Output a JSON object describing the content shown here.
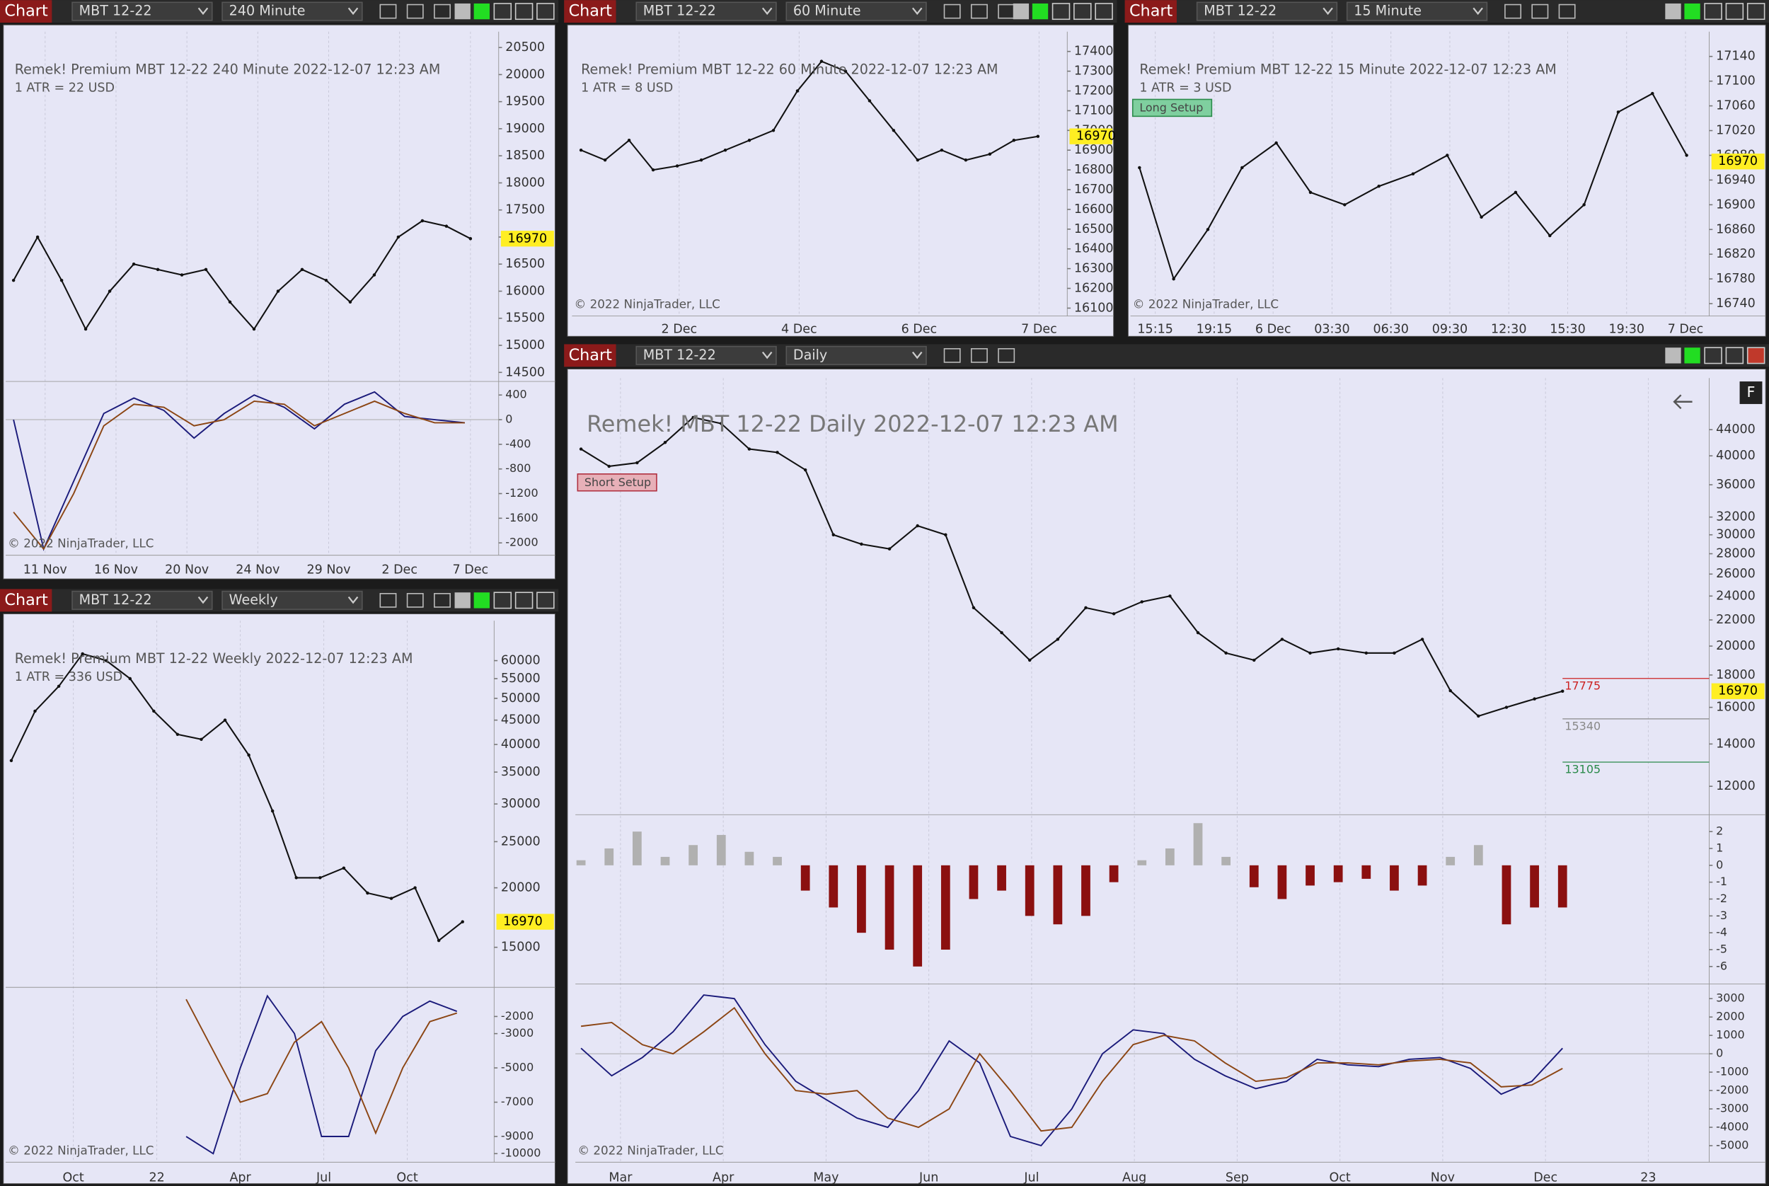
{
  "charts": [
    {
      "tab": "Chart",
      "instrument": "MBT 12-22",
      "interval": "240 Minute",
      "header": "Remek!  Premium  MBT 12-22  240 Minute  2022-12-07 12:23 AM",
      "atr": "1 ATR = 22 USD",
      "copyright": "© 2022 NinjaTrader, LLC",
      "price_label": 16970,
      "xticks": [
        "11 Nov",
        "16 Nov",
        "20 Nov",
        "24 Nov",
        "29 Nov",
        "2 Dec",
        "7 Dec"
      ],
      "price": {
        "ylim": [
          14333,
          20792
        ],
        "log_scale": false,
        "yticks": [
          14500,
          15000,
          15500,
          16000,
          16500,
          17000,
          17500,
          18000,
          18500,
          19000,
          19500,
          20000,
          20500
        ],
        "color": "#111111",
        "values": [
          16200,
          17000,
          16200,
          15300,
          16000,
          16500,
          16400,
          16300,
          16400,
          15800,
          15300,
          16000,
          16400,
          16200,
          15800,
          16300,
          17000,
          17300,
          17200,
          16970
        ]
      },
      "indicator": {
        "ylim": [
          -2200,
          620
        ],
        "yticks": [
          -2000,
          -1600,
          -1200,
          -800,
          -400,
          0,
          400
        ],
        "series": [
          {
            "color": "#1a1a7a",
            "values": [
              0,
              -2100,
              -1000,
              100,
              350,
              150,
              -300,
              100,
              400,
              200,
              -150,
              250,
              450,
              50,
              0,
              -50
            ]
          },
          {
            "color": "#8b4513",
            "values": [
              -1500,
              -2100,
              -1200,
              -100,
              250,
              200,
              -100,
              0,
              300,
              250,
              -100,
              100,
              300,
              100,
              -50,
              -50
            ]
          }
        ]
      }
    },
    {
      "tab": "Chart",
      "instrument": "MBT 12-22",
      "interval": "60 Minute",
      "header": "Remek!  Premium  MBT 12-22  60 Minute  2022-12-07 12:23 AM",
      "atr": "1 ATR = 8 USD",
      "copyright": "© 2022 NinjaTrader, LLC",
      "price_label": 16970,
      "xticks": [
        "2 Dec",
        "4 Dec",
        "6 Dec",
        "7 Dec"
      ],
      "price": {
        "ylim": [
          16060,
          17500
        ],
        "log_scale": false,
        "yticks": [
          16100,
          16200,
          16300,
          16400,
          16500,
          16600,
          16700,
          16800,
          16900,
          17000,
          17100,
          17200,
          17300,
          17400
        ],
        "color": "#111111",
        "values": [
          16900,
          16850,
          16950,
          16800,
          16820,
          16850,
          16900,
          16950,
          17000,
          17200,
          17350,
          17300,
          17150,
          17000,
          16850,
          16900,
          16850,
          16880,
          16950,
          16970
        ]
      }
    },
    {
      "tab": "Chart",
      "instrument": "MBT 12-22",
      "interval": "15 Minute",
      "header": "Remek!  Premium  MBT 12-22  15 Minute  2022-12-07 12:23 AM",
      "atr": "1 ATR = 3 USD",
      "copyright": "© 2022 NinjaTrader, LLC",
      "price_label": 16970,
      "setup": "Long Setup",
      "xticks": [
        "15:15",
        "19:15",
        "6 Dec",
        "03:30",
        "06:30",
        "09:30",
        "12:30",
        "15:30",
        "19:30",
        "7 Dec"
      ],
      "price": {
        "ylim": [
          16720,
          17180
        ],
        "log_scale": false,
        "yticks": [
          16740,
          16780,
          16820,
          16860,
          16900,
          16940,
          16980,
          17020,
          17060,
          17100,
          17140
        ],
        "color": "#111111",
        "values": [
          16960,
          16780,
          16860,
          16960,
          17000,
          16920,
          16900,
          16930,
          16950,
          16980,
          16880,
          16920,
          16850,
          16900,
          17050,
          17080,
          16980
        ]
      }
    },
    {
      "tab": "Chart",
      "instrument": "MBT 12-22",
      "interval": "Weekly",
      "header": "Remek!  Premium  MBT 12-22  Weekly  2022-12-07 12:23 AM",
      "atr": "1 ATR = 336 USD",
      "copyright": "© 2022 NinjaTrader, LLC",
      "price_label": 16970,
      "xticks": [
        "Oct",
        "22",
        "Apr",
        "Jul",
        "Oct"
      ],
      "price": {
        "ylim": [
          12360,
          72800
        ],
        "log_scale": true,
        "yticks": [
          15000,
          20000,
          25000,
          30000,
          35000,
          40000,
          45000,
          50000,
          55000,
          60000
        ],
        "color": "#111111",
        "values": [
          37000,
          47000,
          53000,
          62000,
          60000,
          55000,
          47000,
          42000,
          41000,
          45000,
          38000,
          29000,
          21000,
          21000,
          22000,
          19500,
          19000,
          20000,
          15500,
          16970
        ]
      },
      "indicator": {
        "ylim": [
          -10500,
          -300
        ],
        "yticks": [
          -10000,
          -9000,
          -7000,
          -5000,
          -3000,
          -2000
        ],
        "series": [
          {
            "color": "#1a1a7a",
            "values": [
              -9000,
              -10000,
              -5000,
              -800,
              -3000,
              -9000,
              -9000,
              -4000,
              -2000,
              -1100,
              -1700
            ]
          },
          {
            "color": "#8b4513",
            "values": [
              -1000,
              -4000,
              -7000,
              -6500,
              -3500,
              -2300,
              -5000,
              -8800,
              -5000,
              -2300,
              -1800
            ]
          }
        ]
      }
    },
    {
      "tab": "Chart",
      "instrument": "MBT 12-22",
      "interval": "Daily",
      "header": "Remek!  MBT 12-22  Daily  2022-12-07 12:23 AM",
      "setup": "Short Setup",
      "corner": "F",
      "copyright": "© 2022 NinjaTrader, LLC",
      "price_label": 16970,
      "levels": [
        {
          "value": 17775,
          "color": "#cc2222"
        },
        {
          "value": 15340,
          "color": "#888888"
        },
        {
          "value": 13105,
          "color": "#2a8a4a"
        }
      ],
      "xticks": [
        "Mar",
        "Apr",
        "May",
        "Jun",
        "Jul",
        "Aug",
        "Sep",
        "Oct",
        "Nov",
        "Dec",
        "23"
      ],
      "price": {
        "ylim": [
          11000,
          53100
        ],
        "log_scale": true,
        "yticks": [
          12000,
          14000,
          16000,
          18000,
          20000,
          22000,
          24000,
          26000,
          28000,
          30000,
          32000,
          36000,
          40000,
          44000
        ],
        "color": "#111111",
        "values": [
          41000,
          38500,
          39000,
          42000,
          46000,
          45000,
          41000,
          40500,
          38000,
          30000,
          29000,
          28500,
          31000,
          30000,
          23000,
          21000,
          19000,
          20500,
          23000,
          22500,
          23500,
          24000,
          21000,
          19500,
          19000,
          20500,
          19500,
          19800,
          19500,
          19500,
          20500,
          17000,
          15500,
          16000,
          16500,
          16970
        ]
      },
      "histogram": {
        "ylim": [
          -6.9,
          2.8
        ],
        "yticks": [
          -6,
          -5,
          -4,
          -3,
          -2,
          -1,
          0,
          1,
          2
        ],
        "up_color": "#b0b0b0",
        "down_color": "#8b1010",
        "values": [
          0.3,
          1,
          2,
          0.5,
          1.2,
          1.8,
          0.8,
          0.5,
          -1.5,
          -2.5,
          -4,
          -5,
          -6,
          -5,
          -2,
          -1.5,
          -3,
          -3.5,
          -3,
          -1,
          0.3,
          1,
          2.5,
          0.5,
          -1.3,
          -2,
          -1.2,
          -1,
          -0.8,
          -1.5,
          -1.2,
          0.5,
          1.2,
          -3.5,
          -2.5,
          -2.5
        ]
      },
      "indicator": {
        "ylim": [
          -5900,
          3800
        ],
        "yticks": [
          -5000,
          -4000,
          -3000,
          -2000,
          -1000,
          0,
          1000,
          2000,
          3000
        ],
        "series": [
          {
            "color": "#1a1a7a",
            "values": [
              300,
              -1200,
              -200,
              1200,
              3200,
              3000,
              500,
              -1500,
              -2500,
              -3500,
              -4000,
              -2000,
              700,
              -500,
              -4500,
              -5000,
              -3000,
              0,
              1300,
              1100,
              -300,
              -1200,
              -1900,
              -1500,
              -300,
              -600,
              -700,
              -300,
              -200,
              -800,
              -2200,
              -1500,
              300
            ]
          },
          {
            "color": "#8b4513",
            "values": [
              1500,
              1700,
              500,
              0,
              1200,
              2500,
              0,
              -2000,
              -2200,
              -2000,
              -3500,
              -4000,
              -3000,
              0,
              -2000,
              -4200,
              -4000,
              -1500,
              500,
              1000,
              700,
              -500,
              -1500,
              -1300,
              -500,
              -500,
              -600,
              -400,
              -300,
              -500,
              -1800,
              -1700,
              -800
            ]
          }
        ]
      }
    }
  ]
}
